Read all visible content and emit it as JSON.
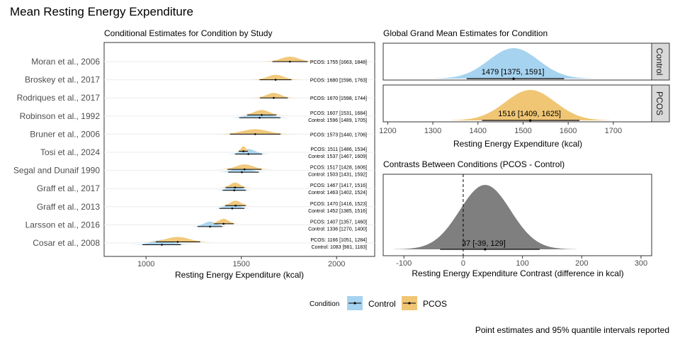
{
  "figure": {
    "title": "Mean Resting Energy Expenditure",
    "caption": "Point estimates and 95% quantile intervals reported"
  },
  "colors": {
    "control": "#a6d3ef",
    "pcos": "#f0c674",
    "contrast": "#7f7f7f",
    "strip_bg": "#d9d9d9",
    "panel_border": "#333333",
    "grid": "#ebebeb"
  },
  "legend": {
    "title": "Condition",
    "items": [
      {
        "label": "Control",
        "color": "#a6d3ef"
      },
      {
        "label": "PCOS",
        "color": "#f0c674"
      }
    ]
  },
  "chart_data": [
    {
      "type": "interval",
      "title": "Conditional Estimates for Condition by Study",
      "xlabel": "Resting Energy Expenditure (kcal)",
      "xlim": [
        780,
        2200
      ],
      "xticks": [
        1000,
        1500,
        2000
      ],
      "categories": [
        "Moran et al., 2006",
        "Broskey et al., 2017",
        "Rodriques et al., 2017",
        "Robinson et al., 1992",
        "Bruner et al., 2006",
        "Tosi et al., 2024",
        "Segal and Dunaif 1990",
        "Graff et al., 2017",
        "Graff et al., 2013",
        "Larsson et al., 2016",
        "Cosar et al., 2008"
      ],
      "studies": [
        {
          "study": "Moran et al., 2006",
          "pcos": {
            "mean": 1755,
            "lo": 1663,
            "hi": 1848,
            "label": "PCOS: 1755 [1663, 1848]"
          },
          "control": null
        },
        {
          "study": "Broskey et al., 2017",
          "pcos": {
            "mean": 1680,
            "lo": 1596,
            "hi": 1763,
            "label": "PCOS: 1680 [1596, 1763]"
          },
          "control": null
        },
        {
          "study": "Rodriques et al., 2017",
          "pcos": {
            "mean": 1670,
            "lo": 1598,
            "hi": 1744,
            "label": "PCOS: 1670 [1598, 1744]"
          },
          "control": null
        },
        {
          "study": "Robinson et al., 1992",
          "pcos": {
            "mean": 1607,
            "lo": 1531,
            "hi": 1684,
            "label": "PCOS: 1607 [1531, 1684]"
          },
          "control": {
            "mean": 1596,
            "lo": 1489,
            "hi": 1705,
            "label": "Control: 1596 [1489, 1705]"
          }
        },
        {
          "study": "Bruner et al., 2006",
          "pcos": {
            "mean": 1573,
            "lo": 1440,
            "hi": 1706,
            "label": "PCOS: 1573 [1440, 1706]"
          },
          "control": null
        },
        {
          "study": "Tosi et al., 2024",
          "pcos": {
            "mean": 1511,
            "lo": 1486,
            "hi": 1534,
            "label": "PCOS: 1511 [1486, 1534]"
          },
          "control": {
            "mean": 1537,
            "lo": 1467,
            "hi": 1609,
            "label": "Control: 1537 [1467, 1609]"
          }
        },
        {
          "study": "Segal and Dunaif 1990",
          "pcos": {
            "mean": 1517,
            "lo": 1428,
            "hi": 1606,
            "label": "PCOS: 1517 [1428, 1606]"
          },
          "control": {
            "mean": 1503,
            "lo": 1431,
            "hi": 1592,
            "label": "Control: 1503 [1431, 1592]"
          }
        },
        {
          "study": "Graff et al., 2017",
          "pcos": {
            "mean": 1467,
            "lo": 1417,
            "hi": 1516,
            "label": "PCOS: 1467 [1417, 1516]"
          },
          "control": {
            "mean": 1463,
            "lo": 1402,
            "hi": 1524,
            "label": "Control: 1463 [1402, 1524]"
          }
        },
        {
          "study": "Graff et al., 2013",
          "pcos": {
            "mean": 1470,
            "lo": 1416,
            "hi": 1523,
            "label": "PCOS: 1470 [1416, 1523]"
          },
          "control": {
            "mean": 1452,
            "lo": 1385,
            "hi": 1516,
            "label": "Control: 1452 [1385, 1516]"
          }
        },
        {
          "study": "Larsson et al., 2016",
          "pcos": {
            "mean": 1407,
            "lo": 1357,
            "hi": 1460,
            "label": "PCOS: 1407 [1357, 1460]"
          },
          "control": {
            "mean": 1336,
            "lo": 1270,
            "hi": 1400,
            "label": "Control: 1336 [1270, 1400]"
          }
        },
        {
          "study": "Cosar et al., 2008",
          "pcos": {
            "mean": 1166,
            "lo": 1051,
            "hi": 1284,
            "label": "PCOS: 1166 [1051, 1284]"
          },
          "control": {
            "mean": 1083,
            "lo": 981,
            "hi": 1183,
            "label": "Control: 1083 [981, 1183]"
          }
        }
      ]
    },
    {
      "type": "density",
      "title": "Global Grand Mean Estimates for Condition",
      "xlabel": "Resting Energy Expenditure (kcal)",
      "xlim": [
        1190,
        1785
      ],
      "xticks": [
        1200,
        1300,
        1400,
        1500,
        1600,
        1700
      ],
      "series": [
        {
          "name": "Control",
          "mean": 1479,
          "lo": 1375,
          "hi": 1591,
          "label": "1479 [1375, 1591]",
          "color": "#a6d3ef"
        },
        {
          "name": "PCOS",
          "mean": 1516,
          "lo": 1409,
          "hi": 1625,
          "label": "1516 [1409, 1625]",
          "color": "#f0c674"
        }
      ]
    },
    {
      "type": "density",
      "title": "Contrasts Between Conditions (PCOS - Control)",
      "xlabel": "Resting Energy Expenditure Contrast (difference in kcal)",
      "xlim": [
        -135,
        318
      ],
      "xticks": [
        -100,
        0,
        100,
        200,
        300
      ],
      "reference_line": 0,
      "series": [
        {
          "mean": 37,
          "lo": -39,
          "hi": 129,
          "label": "37 [-39, 129]",
          "color": "#7f7f7f"
        }
      ]
    }
  ]
}
